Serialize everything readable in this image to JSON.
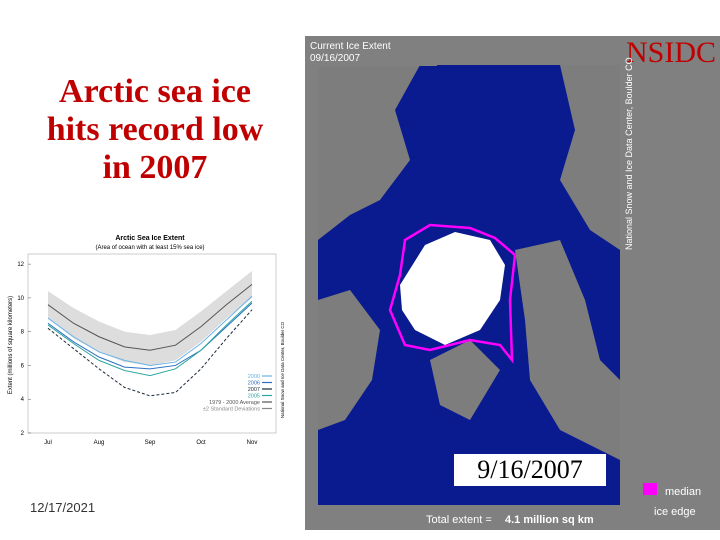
{
  "slide": {
    "title": "Arctic sea ice hits record low in 2007",
    "date": "12/17/2021"
  },
  "map": {
    "header": "Current Ice Extent",
    "header_date": "09/16/2007",
    "logo": "NSIDC",
    "credit": "National Snow and Ice Data Center, Boulder CO",
    "date_label": "9/16/2007",
    "legend_label_1": "median",
    "legend_label_2": "ice edge",
    "median_color": "#ff00ff",
    "total_label": "Total extent =",
    "total_value": "4.1 million sq km"
  },
  "chart_data": {
    "type": "line",
    "title": "Arctic Sea Ice Extent",
    "subtitle": "(Area of ocean with at least 15% sea ice)",
    "y_label": "Extent (millions of square kilometers)",
    "credit": "National Snow and Ice Data Center, Boulder CO",
    "categories": [
      "Jul",
      null,
      "Aug",
      null,
      "Sep",
      null,
      "Oct",
      null,
      "Nov"
    ],
    "ylim": [
      2,
      12.6
    ],
    "yticks": [
      2,
      4,
      6,
      8,
      10,
      12
    ],
    "series": [
      {
        "name": "2000",
        "color": "#66b3e8",
        "values": [
          8.8,
          7.7,
          6.8,
          6.3,
          6.0,
          6.2,
          7.3,
          8.7,
          10.1
        ]
      },
      {
        "name": "2006",
        "color": "#2a6fc0",
        "values": [
          8.5,
          7.4,
          6.5,
          5.9,
          5.8,
          6.0,
          6.9,
          8.3,
          9.7
        ]
      },
      {
        "name": "2007",
        "color": "#1a2a3a",
        "dashed": true,
        "values": [
          8.2,
          7.0,
          5.8,
          4.7,
          4.2,
          4.4,
          5.8,
          7.6,
          9.3
        ]
      },
      {
        "name": "2005",
        "color": "#2ca6a0",
        "values": [
          8.4,
          7.3,
          6.3,
          5.7,
          5.4,
          5.8,
          6.9,
          8.4,
          9.8
        ]
      },
      {
        "name": "1979 - 2000 Average",
        "color": "#555555",
        "values": [
          9.6,
          8.5,
          7.7,
          7.1,
          6.9,
          7.2,
          8.3,
          9.6,
          10.8
        ]
      }
    ],
    "band": {
      "name": "±2 Standard Deviations",
      "color": "#dddddd",
      "upper": [
        10.4,
        9.4,
        8.6,
        8.0,
        7.8,
        8.1,
        9.2,
        10.4,
        11.6
      ],
      "lower": [
        8.8,
        7.6,
        6.8,
        6.2,
        6.0,
        6.3,
        7.4,
        8.8,
        10.0
      ]
    }
  }
}
